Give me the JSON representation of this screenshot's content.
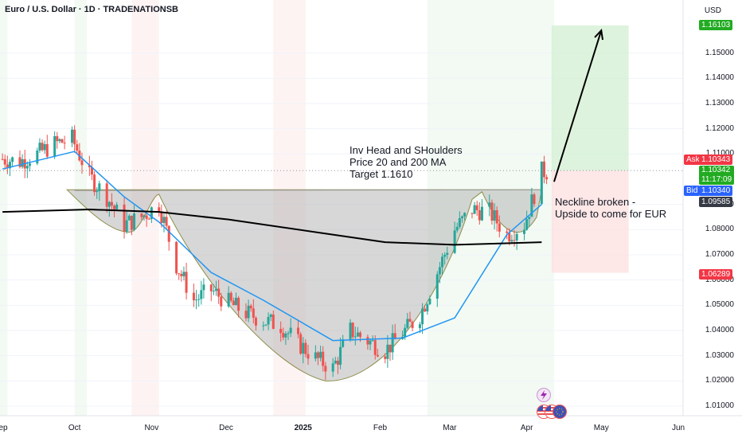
{
  "header": {
    "title": "Euro / U.S. Dollar · 1D · TRADENATIONSB",
    "currency": "USD"
  },
  "annotations": {
    "setup_lines": [
      "Inv Head and SHoulders",
      "Price 20 and 200 MA",
      "Target 1.1610"
    ],
    "breakout_lines": [
      "Neckline broken -",
      "Upside to come for EUR"
    ]
  },
  "price_tags": {
    "target": "1.16103",
    "ask_label": "Ask",
    "ask": "1.10343",
    "last": "1.10342",
    "countdown": "11:17:09",
    "bid_label": "Bid",
    "bid": "1.10340",
    "neckline": "1.09585",
    "stop": "1.06289"
  },
  "colors": {
    "up": "#26a69a",
    "down": "#ef5350",
    "ma20": "#2196f3",
    "ma200": "#000000",
    "target_zone": "#d4f0d4",
    "stop_zone": "#fde1e1",
    "pattern_fill": "#b0b0b0",
    "target_tag": "#22ab22",
    "ask_tag": "#f23645",
    "bid_tag": "#2962ff",
    "neutral_tag": "#363a45"
  },
  "icons": [
    "lightning-icon",
    "us-flag-icon",
    "eu-flag-icon"
  ],
  "chart_data": {
    "type": "candlestick",
    "x_ticks": [
      "ep",
      "Oct",
      "Nov",
      "Dec",
      "2025",
      "Feb",
      "Mar",
      "Apr",
      "May",
      "Jun"
    ],
    "y_ticks": [
      "1.15000",
      "1.14000",
      "1.13000",
      "1.12000",
      "1.11000",
      "1.09000",
      "1.08000",
      "1.07000",
      "1.06000",
      "1.05000",
      "1.04000",
      "1.03000",
      "1.02000",
      "1.01000"
    ],
    "ylim": [
      1.005,
      1.165
    ],
    "series": [
      {
        "kind": "price",
        "points": [
          [
            "2024-09-02",
            1.108
          ],
          [
            "2024-09-09",
            1.107
          ],
          [
            "2024-09-16",
            1.11
          ],
          [
            "2024-09-23",
            1.114
          ],
          [
            "2024-09-30",
            1.116
          ],
          [
            "2024-10-07",
            1.101
          ],
          [
            "2024-10-14",
            1.093
          ],
          [
            "2024-10-21",
            1.082
          ],
          [
            "2024-10-28",
            1.085
          ],
          [
            "2024-11-04",
            1.09
          ],
          [
            "2024-11-11",
            1.066
          ],
          [
            "2024-11-18",
            1.052
          ],
          [
            "2024-11-25",
            1.056
          ],
          [
            "2024-12-02",
            1.051
          ],
          [
            "2024-12-09",
            1.047
          ],
          [
            "2024-12-16",
            1.044
          ],
          [
            "2024-12-23",
            1.042
          ],
          [
            "2024-12-30",
            1.035
          ],
          [
            "2025-01-06",
            1.029
          ],
          [
            "2025-01-13",
            1.025
          ],
          [
            "2025-01-20",
            1.04
          ],
          [
            "2025-02-03",
            1.032
          ],
          [
            "2025-02-17",
            1.046
          ],
          [
            "2025-03-03",
            1.08
          ],
          [
            "2025-03-10",
            1.088
          ],
          [
            "2025-03-17",
            1.087
          ],
          [
            "2025-03-24",
            1.078
          ],
          [
            "2025-03-31",
            1.082
          ],
          [
            "2025-04-07",
            1.103
          ]
        ]
      },
      {
        "kind": "ma",
        "name": "MA 20",
        "points": [
          [
            "2024-09-02",
            1.104
          ],
          [
            "2024-10-01",
            1.111
          ],
          [
            "2024-10-21",
            1.093
          ],
          [
            "2024-11-04",
            1.083
          ],
          [
            "2024-11-25",
            1.063
          ],
          [
            "2024-12-16",
            1.052
          ],
          [
            "2025-01-13",
            1.036
          ],
          [
            "2025-02-10",
            1.037
          ],
          [
            "2025-03-03",
            1.045
          ],
          [
            "2025-03-24",
            1.078
          ],
          [
            "2025-04-07",
            1.09
          ]
        ]
      },
      {
        "kind": "ma",
        "name": "MA 200",
        "points": [
          [
            "2024-09-02",
            1.087
          ],
          [
            "2024-10-07",
            1.088
          ],
          [
            "2024-11-04",
            1.087
          ],
          [
            "2024-12-02",
            1.084
          ],
          [
            "2025-01-06",
            1.079
          ],
          [
            "2025-02-03",
            1.075
          ],
          [
            "2025-03-03",
            1.074
          ],
          [
            "2025-04-07",
            1.075
          ]
        ]
      }
    ],
    "neckline": 1.0958,
    "target": 1.161,
    "stop": 1.0629,
    "entry": 1.1034,
    "target_arrow": {
      "from": [
        "2025-04-12",
        1.099
      ],
      "to": [
        "2025-05-01",
        1.159
      ]
    },
    "patterns": [
      "left-shoulder",
      "head",
      "right-shoulder"
    ]
  }
}
